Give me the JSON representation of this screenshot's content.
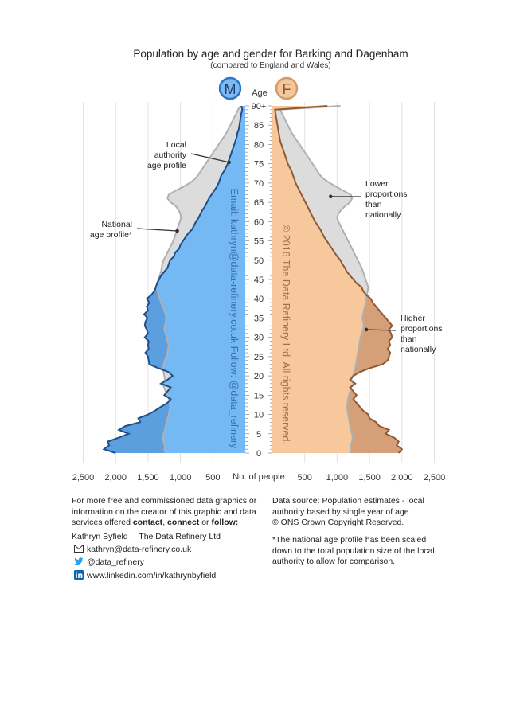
{
  "chart_data": {
    "type": "population_pyramid",
    "title": "Population by age and gender for Barking and Dagenham",
    "subtitle": "(compared to England and Wales)",
    "male_badge": "M",
    "female_badge": "F",
    "age_axis_label": "Age",
    "x_axis_label": "No. of people",
    "x_ticks_left": [
      "2,500",
      "2,000",
      "1,500",
      "1,000",
      "500"
    ],
    "x_ticks_right": [
      "500",
      "1,000",
      "1,500",
      "2,000",
      "2,500"
    ],
    "age_tick_labels": [
      "0",
      "5",
      "10",
      "15",
      "20",
      "25",
      "30",
      "35",
      "40",
      "45",
      "50",
      "55",
      "60",
      "65",
      "70",
      "75",
      "80",
      "85",
      "90+"
    ],
    "xlim": [
      0,
      2500
    ],
    "ages": [
      0,
      1,
      2,
      3,
      4,
      5,
      6,
      7,
      8,
      9,
      10,
      11,
      12,
      13,
      14,
      15,
      16,
      17,
      18,
      19,
      20,
      21,
      22,
      23,
      24,
      25,
      26,
      27,
      28,
      29,
      30,
      31,
      32,
      33,
      34,
      35,
      36,
      37,
      38,
      39,
      40,
      41,
      42,
      43,
      44,
      45,
      46,
      47,
      48,
      49,
      50,
      51,
      52,
      53,
      54,
      55,
      56,
      57,
      58,
      59,
      60,
      61,
      62,
      63,
      64,
      65,
      66,
      67,
      68,
      69,
      70,
      71,
      72,
      73,
      74,
      75,
      76,
      77,
      78,
      79,
      80,
      81,
      82,
      83,
      84,
      85,
      86,
      87,
      88,
      89,
      90
    ],
    "series": [
      {
        "name": "Local authority age profile - male",
        "values": [
          2000,
          2180,
          2100,
          2120,
          1950,
          1800,
          1950,
          1850,
          1620,
          1650,
          1500,
          1390,
          1300,
          1200,
          1150,
          1250,
          1200,
          1150,
          1300,
          1200,
          1120,
          1180,
          1340,
          1480,
          1490,
          1500,
          1540,
          1490,
          1500,
          1490,
          1550,
          1500,
          1520,
          1550,
          1540,
          1510,
          1560,
          1500,
          1520,
          1480,
          1520,
          1450,
          1400,
          1380,
          1360,
          1330,
          1300,
          1250,
          1200,
          1180,
          1160,
          1100,
          1080,
          1020,
          1000,
          960,
          920,
          880,
          820,
          790,
          760,
          720,
          690,
          660,
          620,
          590,
          560,
          520,
          480,
          440,
          410,
          390,
          370,
          330,
          300,
          270,
          250,
          230,
          210,
          190,
          170,
          150,
          130,
          120,
          100,
          90,
          80,
          70,
          60,
          45,
          60
        ]
      },
      {
        "name": "National age profile - male",
        "values": [
          1230,
          1250,
          1240,
          1260,
          1270,
          1260,
          1240,
          1230,
          1210,
          1200,
          1180,
          1170,
          1160,
          1170,
          1180,
          1200,
          1230,
          1250,
          1280,
          1240,
          1250,
          1260,
          1270,
          1260,
          1240,
          1220,
          1200,
          1190,
          1180,
          1200,
          1210,
          1230,
          1250,
          1240,
          1230,
          1220,
          1230,
          1250,
          1270,
          1300,
          1320,
          1340,
          1350,
          1370,
          1360,
          1340,
          1320,
          1300,
          1290,
          1280,
          1260,
          1230,
          1200,
          1170,
          1140,
          1110,
          1090,
          1070,
          1050,
          1030,
          1010,
          990,
          1000,
          1030,
          1070,
          1150,
          1200,
          1180,
          1080,
          960,
          860,
          780,
          730,
          690,
          650,
          610,
          570,
          530,
          490,
          450,
          410,
          370,
          330,
          290,
          260,
          230,
          200,
          170,
          140,
          110,
          70
        ]
      },
      {
        "name": "Local authority age profile - female",
        "values": [
          1950,
          2000,
          1920,
          1950,
          1880,
          1750,
          1800,
          1650,
          1600,
          1500,
          1480,
          1400,
          1350,
          1300,
          1250,
          1300,
          1250,
          1200,
          1280,
          1200,
          1250,
          1350,
          1500,
          1700,
          1780,
          1800,
          1820,
          1780,
          1820,
          1800,
          1850,
          1830,
          1800,
          1850,
          1800,
          1750,
          1700,
          1650,
          1600,
          1550,
          1520,
          1450,
          1400,
          1380,
          1300,
          1250,
          1200,
          1150,
          1120,
          1080,
          1050,
          1000,
          960,
          920,
          880,
          840,
          800,
          770,
          740,
          700,
          660,
          630,
          600,
          570,
          540,
          510,
          480,
          450,
          420,
          390,
          360,
          340,
          320,
          300,
          270,
          240,
          220,
          200,
          180,
          160,
          140,
          120,
          110,
          100,
          90,
          80,
          70,
          60,
          50,
          40,
          850
        ]
      },
      {
        "name": "National age profile - female",
        "values": [
          1200,
          1220,
          1210,
          1230,
          1240,
          1230,
          1210,
          1200,
          1190,
          1180,
          1170,
          1160,
          1150,
          1160,
          1170,
          1180,
          1200,
          1220,
          1250,
          1220,
          1240,
          1260,
          1280,
          1290,
          1300,
          1310,
          1320,
          1330,
          1340,
          1350,
          1360,
          1380,
          1400,
          1410,
          1400,
          1390,
          1400,
          1410,
          1430,
          1440,
          1450,
          1460,
          1470,
          1480,
          1460,
          1440,
          1420,
          1400,
          1380,
          1350,
          1320,
          1290,
          1260,
          1230,
          1200,
          1170,
          1140,
          1110,
          1080,
          1050,
          1020,
          1000,
          1020,
          1060,
          1120,
          1200,
          1230,
          1210,
          1100,
          990,
          890,
          800,
          740,
          700,
          660,
          620,
          580,
          540,
          500,
          460,
          420,
          380,
          340,
          300,
          270,
          240,
          210,
          180,
          150,
          120,
          1050
        ]
      }
    ],
    "annotations": {
      "local_profile": [
        "Local",
        "authority",
        "age profile"
      ],
      "national_profile": [
        "National",
        "age profile*"
      ],
      "lower": [
        "Lower",
        "proportions",
        "than",
        "nationally"
      ],
      "higher": [
        "Higher",
        "proportions",
        "than",
        "nationally"
      ]
    },
    "watermark_left": "Email: kathryn@data-refinery.co.uk   Follow: @data_refinery",
    "watermark_right": "© 2016 The Data Refinery Ltd. All rights reserved.",
    "colors": {
      "male_fill": "#74b8f4",
      "male_darker": "#5b9fde",
      "male_line": "#1f4f88",
      "female_fill": "#f7c89b",
      "female_darker": "#d5a077",
      "female_line": "#8d5a36",
      "national_fill": "#dcdcdc",
      "national_line": "#b0b0b0",
      "badge_m": "#2979c8",
      "badge_f": "#d69a64"
    }
  },
  "footer": {
    "intro_before_contact": "For more free and commissioned data graphics or",
    "intro_line2": "information on the creator of this graphic and data",
    "intro_line3_pre": "services offered ",
    "contact": "contact",
    "comma": ", ",
    "connect": "connect",
    "or": " or ",
    "follow": "follow:",
    "name": "Kathryn Byfield",
    "company": "The Data Refinery Ltd",
    "email": "kathryn@data-refinery.co.uk",
    "twitter": "@data_refinery",
    "linkedin": "www.linkedin.com/in/kathrynbyfield",
    "source_line1": "Data source: Population estimates - local",
    "source_line2": "authority based by single year of age",
    "source_line3": "© ONS Crown Copyright Reserved.",
    "note_line1": "*The national age profile has been scaled",
    "note_line2": "down to the total population size of the local",
    "note_line3": "authority to allow for comparison."
  }
}
